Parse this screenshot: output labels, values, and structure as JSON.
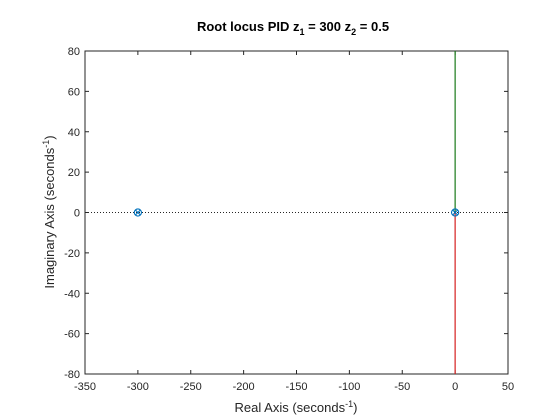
{
  "chart_data": {
    "type": "scatter",
    "title": {
      "prefix": "Root locus PID ",
      "z1_sym": "z",
      "z1_sub": "1",
      "z1_eq": " = 300  ",
      "z2_sym": "z",
      "z2_sub": "2",
      "z2_eq": " = 0.5"
    },
    "xlabel": {
      "main": "Real Axis (seconds",
      "sup": "-1",
      "close": ")"
    },
    "ylabel": {
      "main": "Imaginary Axis (seconds",
      "sup": "-1",
      "close": ")"
    },
    "xlim": [
      -350,
      50
    ],
    "ylim": [
      -80,
      80
    ],
    "xticks": [
      -350,
      -300,
      -250,
      -200,
      -150,
      -100,
      -50,
      0,
      50
    ],
    "yticks": [
      -80,
      -60,
      -40,
      -20,
      0,
      20,
      40,
      60,
      80
    ],
    "xtick_labels": [
      "-350",
      "-300",
      "-250",
      "-200",
      "-150",
      "-100",
      "-50",
      "0",
      "50"
    ],
    "ytick_labels": [
      "-80",
      "-60",
      "-40",
      "-20",
      "0",
      "20",
      "40",
      "60",
      "80"
    ],
    "grid": false,
    "zero_reference_line": "dotted",
    "branches": [
      {
        "color": "#1a7a1a",
        "points": [
          [
            0,
            0
          ],
          [
            0,
            80
          ]
        ]
      },
      {
        "color": "#d62020",
        "points": [
          [
            0,
            0
          ],
          [
            0,
            -80
          ]
        ]
      }
    ],
    "poles_zeros": [
      {
        "x": -300,
        "y": 0
      },
      {
        "x": 0,
        "y": 0
      }
    ],
    "marker_color": "#0072bd"
  }
}
